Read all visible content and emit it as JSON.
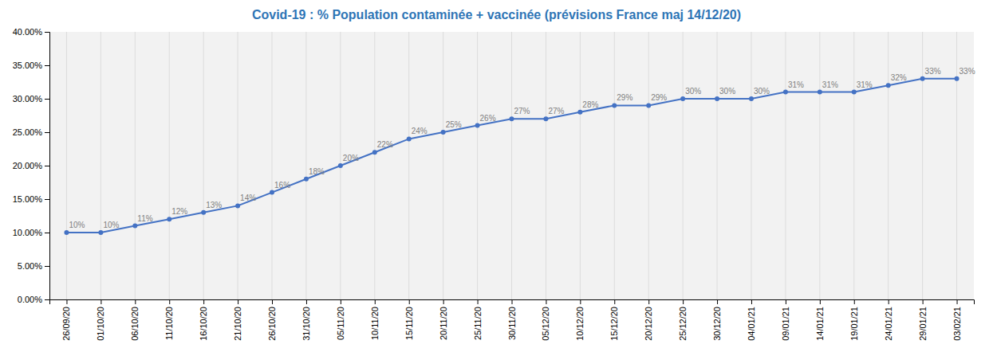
{
  "chart_data": {
    "type": "line",
    "title": "Covid-19 : % Population contaminée + vaccinée  (prévisions France maj 14/12/20)",
    "categories": [
      "26/09/20",
      "01/10/20",
      "06/10/20",
      "11/10/20",
      "16/10/20",
      "21/10/20",
      "26/10/20",
      "31/10/20",
      "05/11/20",
      "10/11/20",
      "15/11/20",
      "20/11/20",
      "25/11/20",
      "30/11/20",
      "05/12/20",
      "10/12/20",
      "15/12/20",
      "20/12/20",
      "25/12/20",
      "30/12/20",
      "04/01/21",
      "09/01/21",
      "14/01/21",
      "19/01/21",
      "24/01/21",
      "29/01/21",
      "03/02/21"
    ],
    "values": [
      0.1,
      0.1,
      0.11,
      0.12,
      0.13,
      0.14,
      0.16,
      0.18,
      0.2,
      0.22,
      0.24,
      0.25,
      0.26,
      0.27,
      0.27,
      0.28,
      0.29,
      0.29,
      0.3,
      0.3,
      0.3,
      0.31,
      0.31,
      0.31,
      0.32,
      0.33,
      0.33
    ],
    "value_labels": [
      "10%",
      "10%",
      "11%",
      "12%",
      "13%",
      "14%",
      "16%",
      "18%",
      "20%",
      "22%",
      "24%",
      "25%",
      "26%",
      "27%",
      "27%",
      "28%",
      "29%",
      "29%",
      "30%",
      "30%",
      "30%",
      "31%",
      "31%",
      "31%",
      "32%",
      "33%",
      "33%"
    ],
    "data_labels": true,
    "color": "#4472C4",
    "marker": "circle",
    "ylim": [
      0.0,
      0.4
    ],
    "yticks": [
      {
        "value": 0.0,
        "label": "0.00%"
      },
      {
        "value": 0.05,
        "label": "5.00%"
      },
      {
        "value": 0.1,
        "label": "10.00%"
      },
      {
        "value": 0.15,
        "label": "15.00%"
      },
      {
        "value": 0.2,
        "label": "20.00%"
      },
      {
        "value": 0.25,
        "label": "25.00%"
      },
      {
        "value": 0.3,
        "label": "30.00%"
      },
      {
        "value": 0.35,
        "label": "35.00%"
      },
      {
        "value": 0.4,
        "label": "40.00%"
      }
    ],
    "grid": "x"
  }
}
